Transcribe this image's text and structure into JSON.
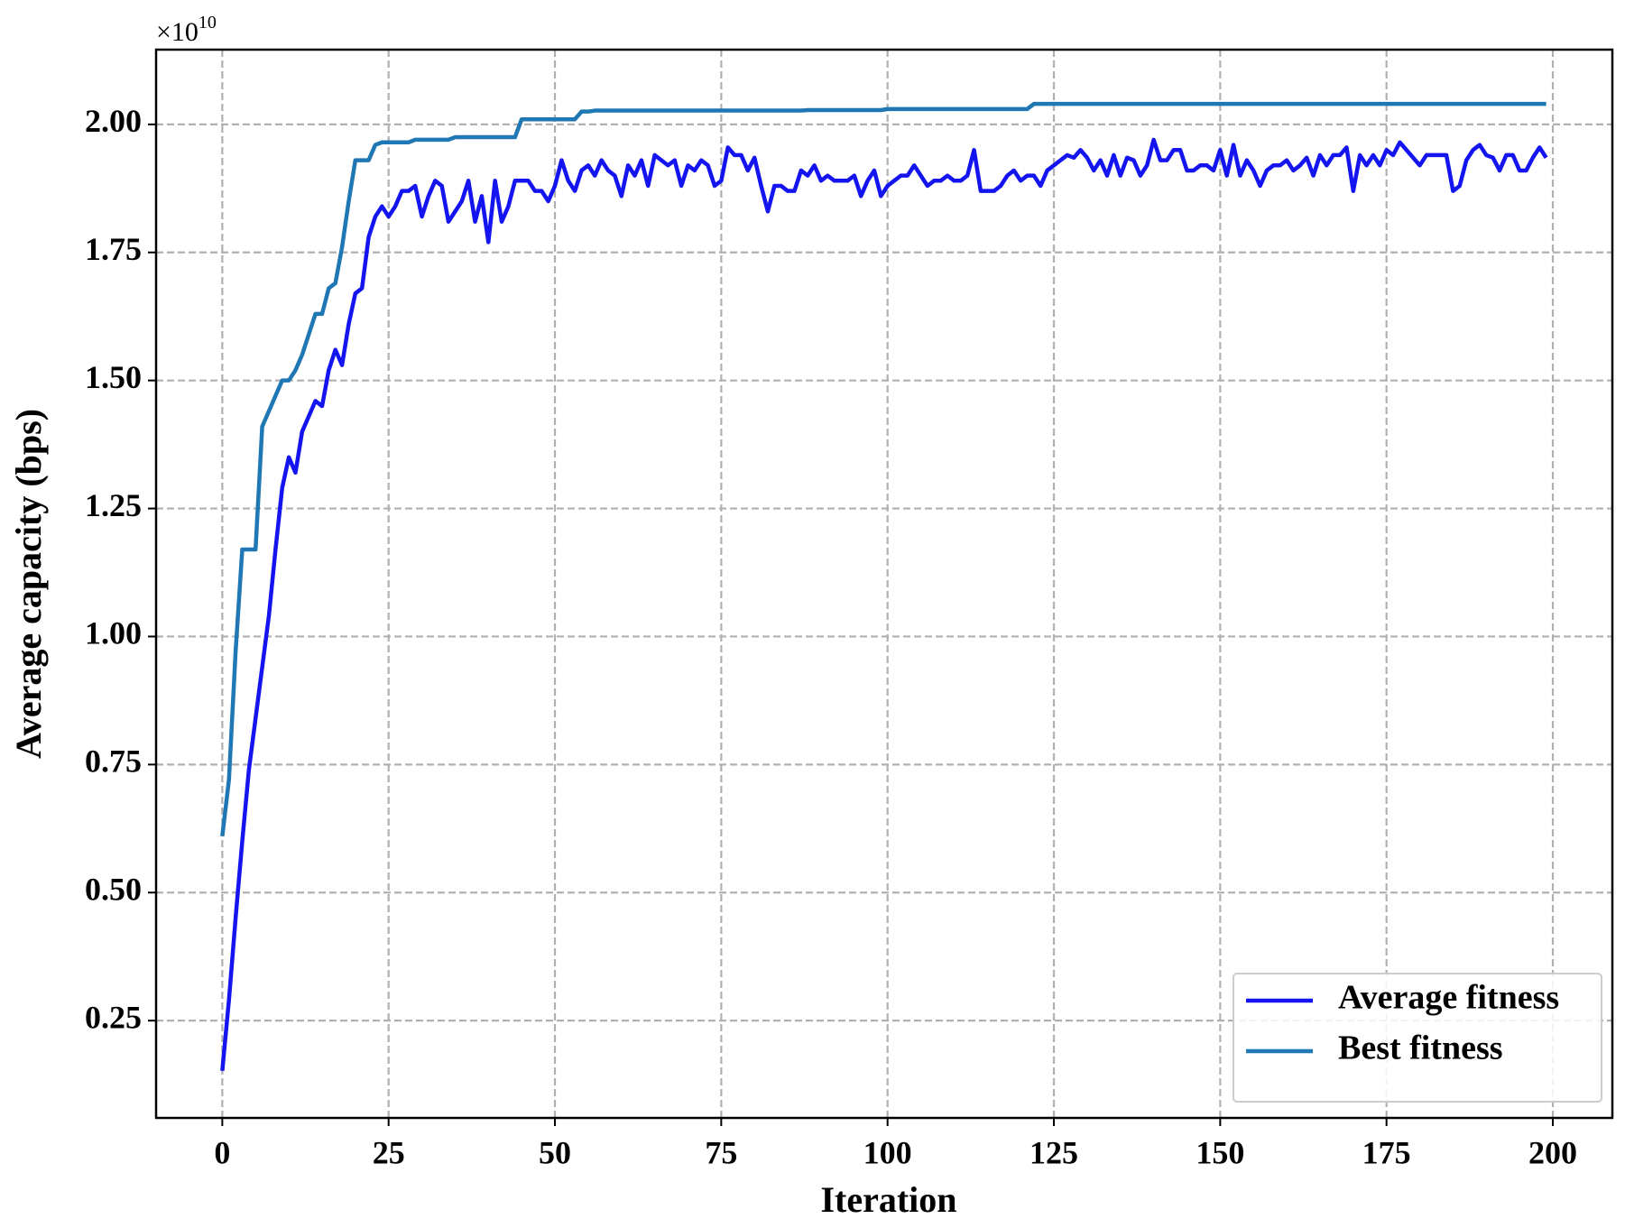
{
  "chart_data": {
    "type": "line",
    "y_label": "Average capacity (bps)",
    "x_label": "Iteration",
    "y_multiplier": {
      "base": "×10",
      "exponent": "10"
    },
    "xlim": [
      -9.95,
      208.95
    ],
    "ylim": [
      0.06,
      2.146
    ],
    "xticks": [
      0,
      25,
      50,
      75,
      100,
      125,
      150,
      175,
      200
    ],
    "yticks": [
      {
        "value": 0.25,
        "label": "0.25"
      },
      {
        "value": 0.5,
        "label": "0.50"
      },
      {
        "value": 0.75,
        "label": "0.75"
      },
      {
        "value": 1,
        "label": "1.00"
      },
      {
        "value": 1.25,
        "label": "1.25"
      },
      {
        "value": 1.5,
        "label": "1.50"
      },
      {
        "value": 1.75,
        "label": "1.75"
      },
      {
        "value": 2,
        "label": "2.00"
      }
    ],
    "grid": true,
    "legend": "lower right",
    "x": [
      0,
      1,
      2,
      3,
      4,
      5,
      6,
      7,
      8,
      9,
      10,
      11,
      12,
      13,
      14,
      15,
      16,
      17,
      18,
      19,
      20,
      21,
      22,
      23,
      24,
      25,
      26,
      27,
      28,
      29,
      30,
      31,
      32,
      33,
      34,
      35,
      36,
      37,
      38,
      39,
      40,
      41,
      42,
      43,
      44,
      45,
      46,
      47,
      48,
      49,
      50,
      51,
      52,
      53,
      54,
      55,
      56,
      57,
      58,
      59,
      60,
      61,
      62,
      63,
      64,
      65,
      66,
      67,
      68,
      69,
      70,
      71,
      72,
      73,
      74,
      75,
      76,
      77,
      78,
      79,
      80,
      81,
      82,
      83,
      84,
      85,
      86,
      87,
      88,
      89,
      90,
      91,
      92,
      93,
      94,
      95,
      96,
      97,
      98,
      99,
      100,
      101,
      102,
      103,
      104,
      105,
      106,
      107,
      108,
      109,
      110,
      111,
      112,
      113,
      114,
      115,
      116,
      117,
      118,
      119,
      120,
      121,
      122,
      123,
      124,
      125,
      126,
      127,
      128,
      129,
      130,
      131,
      132,
      133,
      134,
      135,
      136,
      137,
      138,
      139,
      140,
      141,
      142,
      143,
      144,
      145,
      146,
      147,
      148,
      149,
      150,
      151,
      152,
      153,
      154,
      155,
      156,
      157,
      158,
      159,
      160,
      161,
      162,
      163,
      164,
      165,
      166,
      167,
      168,
      169,
      170,
      171,
      172,
      173,
      174,
      175,
      176,
      177,
      178,
      179,
      180,
      181,
      182,
      183,
      184,
      185,
      186,
      187,
      188,
      189,
      190,
      191,
      192,
      193,
      194,
      195,
      196,
      197,
      198,
      199
    ],
    "series": [
      {
        "name": "Average fitness",
        "color": "#1414f0",
        "values": [
          0.152,
          0.29,
          0.45,
          0.6,
          0.74,
          0.84,
          0.94,
          1.04,
          1.17,
          1.29,
          1.35,
          1.32,
          1.4,
          1.43,
          1.46,
          1.45,
          1.52,
          1.56,
          1.53,
          1.61,
          1.67,
          1.68,
          1.78,
          1.82,
          1.84,
          1.82,
          1.84,
          1.87,
          1.87,
          1.88,
          1.82,
          1.86,
          1.89,
          1.88,
          1.81,
          1.83,
          1.85,
          1.89,
          1.81,
          1.86,
          1.77,
          1.89,
          1.81,
          1.84,
          1.89,
          1.89,
          1.89,
          1.87,
          1.87,
          1.85,
          1.88,
          1.93,
          1.89,
          1.87,
          1.91,
          1.92,
          1.9,
          1.93,
          1.91,
          1.9,
          1.86,
          1.92,
          1.9,
          1.93,
          1.88,
          1.94,
          1.93,
          1.92,
          1.93,
          1.88,
          1.92,
          1.91,
          1.93,
          1.92,
          1.88,
          1.89,
          1.955,
          1.94,
          1.94,
          1.91,
          1.935,
          1.88,
          1.83,
          1.88,
          1.88,
          1.87,
          1.87,
          1.91,
          1.9,
          1.92,
          1.89,
          1.9,
          1.89,
          1.89,
          1.89,
          1.9,
          1.86,
          1.89,
          1.91,
          1.86,
          1.88,
          1.89,
          1.9,
          1.9,
          1.92,
          1.9,
          1.88,
          1.89,
          1.89,
          1.9,
          1.89,
          1.89,
          1.9,
          1.95,
          1.87,
          1.87,
          1.87,
          1.88,
          1.9,
          1.91,
          1.89,
          1.9,
          1.9,
          1.88,
          1.91,
          1.92,
          1.93,
          1.94,
          1.935,
          1.95,
          1.935,
          1.91,
          1.93,
          1.9,
          1.94,
          1.9,
          1.935,
          1.93,
          1.9,
          1.92,
          1.97,
          1.93,
          1.93,
          1.95,
          1.95,
          1.91,
          1.91,
          1.92,
          1.92,
          1.91,
          1.95,
          1.9,
          1.96,
          1.9,
          1.93,
          1.91,
          1.88,
          1.91,
          1.92,
          1.92,
          1.93,
          1.91,
          1.92,
          1.935,
          1.9,
          1.94,
          1.92,
          1.94,
          1.94,
          1.955,
          1.87,
          1.94,
          1.92,
          1.94,
          1.92,
          1.95,
          1.94,
          1.965,
          1.95,
          1.935,
          1.92,
          1.94,
          1.94,
          1.94,
          1.94,
          1.87,
          1.88,
          1.93,
          1.95,
          1.96,
          1.94,
          1.935,
          1.91,
          1.94,
          1.94,
          1.91,
          1.91,
          1.935,
          1.955,
          1.935
        ]
      },
      {
        "name": "Best fitness",
        "color": "#1f77b4",
        "values": [
          0.61,
          0.72,
          0.97,
          1.17,
          1.17,
          1.17,
          1.41,
          1.44,
          1.47,
          1.5,
          1.5,
          1.52,
          1.55,
          1.59,
          1.63,
          1.63,
          1.68,
          1.69,
          1.76,
          1.85,
          1.93,
          1.93,
          1.93,
          1.96,
          1.965,
          1.965,
          1.965,
          1.965,
          1.965,
          1.97,
          1.97,
          1.97,
          1.97,
          1.97,
          1.97,
          1.975,
          1.975,
          1.975,
          1.975,
          1.975,
          1.975,
          1.975,
          1.975,
          1.975,
          1.975,
          2.01,
          2.01,
          2.01,
          2.01,
          2.01,
          2.01,
          2.01,
          2.01,
          2.01,
          2.025,
          2.025,
          2.027,
          2.027,
          2.027,
          2.027,
          2.027,
          2.027,
          2.027,
          2.027,
          2.027,
          2.027,
          2.027,
          2.027,
          2.027,
          2.027,
          2.027,
          2.027,
          2.027,
          2.027,
          2.027,
          2.027,
          2.027,
          2.027,
          2.027,
          2.027,
          2.027,
          2.027,
          2.027,
          2.027,
          2.027,
          2.027,
          2.027,
          2.027,
          2.028,
          2.028,
          2.028,
          2.028,
          2.028,
          2.028,
          2.028,
          2.028,
          2.028,
          2.028,
          2.028,
          2.028,
          2.03,
          2.03,
          2.03,
          2.03,
          2.03,
          2.03,
          2.03,
          2.03,
          2.03,
          2.03,
          2.03,
          2.03,
          2.03,
          2.03,
          2.03,
          2.03,
          2.03,
          2.03,
          2.03,
          2.03,
          2.03,
          2.03,
          2.04,
          2.04,
          2.04,
          2.04,
          2.04,
          2.04,
          2.04,
          2.04,
          2.04,
          2.04,
          2.04,
          2.04,
          2.04,
          2.04,
          2.04,
          2.04,
          2.04,
          2.04,
          2.04,
          2.04,
          2.04,
          2.04,
          2.04,
          2.04,
          2.04,
          2.04,
          2.04,
          2.04,
          2.04,
          2.04,
          2.04,
          2.04,
          2.04,
          2.04,
          2.04,
          2.04,
          2.04,
          2.04,
          2.04,
          2.04,
          2.04,
          2.04,
          2.04,
          2.04,
          2.04,
          2.04,
          2.04,
          2.04,
          2.04,
          2.04,
          2.04,
          2.04,
          2.04,
          2.04,
          2.04,
          2.04,
          2.04,
          2.04,
          2.04,
          2.04,
          2.04,
          2.04,
          2.04,
          2.04,
          2.04,
          2.04,
          2.04,
          2.04,
          2.04,
          2.04,
          2.04,
          2.04,
          2.04,
          2.04,
          2.04,
          2.04,
          2.04,
          2.04
        ]
      }
    ]
  }
}
